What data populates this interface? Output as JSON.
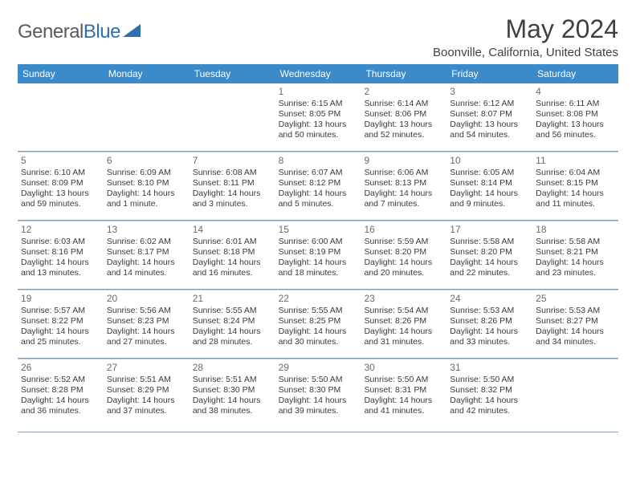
{
  "logo": {
    "text1": "General",
    "text2": "Blue"
  },
  "title": "May 2024",
  "location": "Boonville, California, United States",
  "dayNames": [
    "Sunday",
    "Monday",
    "Tuesday",
    "Wednesday",
    "Thursday",
    "Friday",
    "Saturday"
  ],
  "colors": {
    "headerBg": "#3b8bca",
    "headerText": "#ffffff",
    "divider": "#8a9db0",
    "text": "#3a3a3a",
    "logoGray": "#5a5a5a",
    "logoBlue": "#2f6fb0"
  },
  "weeks": [
    [
      {
        "n": "",
        "sunrise": "",
        "sunset": "",
        "daylight": ""
      },
      {
        "n": "",
        "sunrise": "",
        "sunset": "",
        "daylight": ""
      },
      {
        "n": "",
        "sunrise": "",
        "sunset": "",
        "daylight": ""
      },
      {
        "n": "1",
        "sunrise": "Sunrise: 6:15 AM",
        "sunset": "Sunset: 8:05 PM",
        "daylight": "Daylight: 13 hours and 50 minutes."
      },
      {
        "n": "2",
        "sunrise": "Sunrise: 6:14 AM",
        "sunset": "Sunset: 8:06 PM",
        "daylight": "Daylight: 13 hours and 52 minutes."
      },
      {
        "n": "3",
        "sunrise": "Sunrise: 6:12 AM",
        "sunset": "Sunset: 8:07 PM",
        "daylight": "Daylight: 13 hours and 54 minutes."
      },
      {
        "n": "4",
        "sunrise": "Sunrise: 6:11 AM",
        "sunset": "Sunset: 8:08 PM",
        "daylight": "Daylight: 13 hours and 56 minutes."
      }
    ],
    [
      {
        "n": "5",
        "sunrise": "Sunrise: 6:10 AM",
        "sunset": "Sunset: 8:09 PM",
        "daylight": "Daylight: 13 hours and 59 minutes."
      },
      {
        "n": "6",
        "sunrise": "Sunrise: 6:09 AM",
        "sunset": "Sunset: 8:10 PM",
        "daylight": "Daylight: 14 hours and 1 minute."
      },
      {
        "n": "7",
        "sunrise": "Sunrise: 6:08 AM",
        "sunset": "Sunset: 8:11 PM",
        "daylight": "Daylight: 14 hours and 3 minutes."
      },
      {
        "n": "8",
        "sunrise": "Sunrise: 6:07 AM",
        "sunset": "Sunset: 8:12 PM",
        "daylight": "Daylight: 14 hours and 5 minutes."
      },
      {
        "n": "9",
        "sunrise": "Sunrise: 6:06 AM",
        "sunset": "Sunset: 8:13 PM",
        "daylight": "Daylight: 14 hours and 7 minutes."
      },
      {
        "n": "10",
        "sunrise": "Sunrise: 6:05 AM",
        "sunset": "Sunset: 8:14 PM",
        "daylight": "Daylight: 14 hours and 9 minutes."
      },
      {
        "n": "11",
        "sunrise": "Sunrise: 6:04 AM",
        "sunset": "Sunset: 8:15 PM",
        "daylight": "Daylight: 14 hours and 11 minutes."
      }
    ],
    [
      {
        "n": "12",
        "sunrise": "Sunrise: 6:03 AM",
        "sunset": "Sunset: 8:16 PM",
        "daylight": "Daylight: 14 hours and 13 minutes."
      },
      {
        "n": "13",
        "sunrise": "Sunrise: 6:02 AM",
        "sunset": "Sunset: 8:17 PM",
        "daylight": "Daylight: 14 hours and 14 minutes."
      },
      {
        "n": "14",
        "sunrise": "Sunrise: 6:01 AM",
        "sunset": "Sunset: 8:18 PM",
        "daylight": "Daylight: 14 hours and 16 minutes."
      },
      {
        "n": "15",
        "sunrise": "Sunrise: 6:00 AM",
        "sunset": "Sunset: 8:19 PM",
        "daylight": "Daylight: 14 hours and 18 minutes."
      },
      {
        "n": "16",
        "sunrise": "Sunrise: 5:59 AM",
        "sunset": "Sunset: 8:20 PM",
        "daylight": "Daylight: 14 hours and 20 minutes."
      },
      {
        "n": "17",
        "sunrise": "Sunrise: 5:58 AM",
        "sunset": "Sunset: 8:20 PM",
        "daylight": "Daylight: 14 hours and 22 minutes."
      },
      {
        "n": "18",
        "sunrise": "Sunrise: 5:58 AM",
        "sunset": "Sunset: 8:21 PM",
        "daylight": "Daylight: 14 hours and 23 minutes."
      }
    ],
    [
      {
        "n": "19",
        "sunrise": "Sunrise: 5:57 AM",
        "sunset": "Sunset: 8:22 PM",
        "daylight": "Daylight: 14 hours and 25 minutes."
      },
      {
        "n": "20",
        "sunrise": "Sunrise: 5:56 AM",
        "sunset": "Sunset: 8:23 PM",
        "daylight": "Daylight: 14 hours and 27 minutes."
      },
      {
        "n": "21",
        "sunrise": "Sunrise: 5:55 AM",
        "sunset": "Sunset: 8:24 PM",
        "daylight": "Daylight: 14 hours and 28 minutes."
      },
      {
        "n": "22",
        "sunrise": "Sunrise: 5:55 AM",
        "sunset": "Sunset: 8:25 PM",
        "daylight": "Daylight: 14 hours and 30 minutes."
      },
      {
        "n": "23",
        "sunrise": "Sunrise: 5:54 AM",
        "sunset": "Sunset: 8:26 PM",
        "daylight": "Daylight: 14 hours and 31 minutes."
      },
      {
        "n": "24",
        "sunrise": "Sunrise: 5:53 AM",
        "sunset": "Sunset: 8:26 PM",
        "daylight": "Daylight: 14 hours and 33 minutes."
      },
      {
        "n": "25",
        "sunrise": "Sunrise: 5:53 AM",
        "sunset": "Sunset: 8:27 PM",
        "daylight": "Daylight: 14 hours and 34 minutes."
      }
    ],
    [
      {
        "n": "26",
        "sunrise": "Sunrise: 5:52 AM",
        "sunset": "Sunset: 8:28 PM",
        "daylight": "Daylight: 14 hours and 36 minutes."
      },
      {
        "n": "27",
        "sunrise": "Sunrise: 5:51 AM",
        "sunset": "Sunset: 8:29 PM",
        "daylight": "Daylight: 14 hours and 37 minutes."
      },
      {
        "n": "28",
        "sunrise": "Sunrise: 5:51 AM",
        "sunset": "Sunset: 8:30 PM",
        "daylight": "Daylight: 14 hours and 38 minutes."
      },
      {
        "n": "29",
        "sunrise": "Sunrise: 5:50 AM",
        "sunset": "Sunset: 8:30 PM",
        "daylight": "Daylight: 14 hours and 39 minutes."
      },
      {
        "n": "30",
        "sunrise": "Sunrise: 5:50 AM",
        "sunset": "Sunset: 8:31 PM",
        "daylight": "Daylight: 14 hours and 41 minutes."
      },
      {
        "n": "31",
        "sunrise": "Sunrise: 5:50 AM",
        "sunset": "Sunset: 8:32 PM",
        "daylight": "Daylight: 14 hours and 42 minutes."
      },
      {
        "n": "",
        "sunrise": "",
        "sunset": "",
        "daylight": ""
      }
    ]
  ]
}
